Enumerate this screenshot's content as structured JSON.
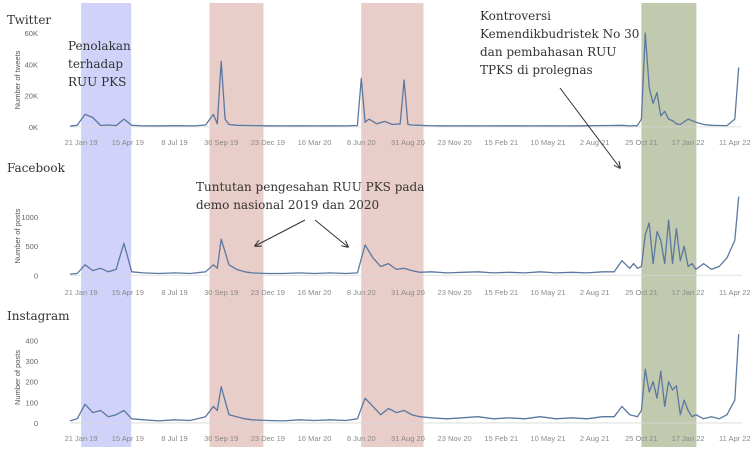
{
  "chart_data": {
    "type": "line",
    "line_color": "#5b78a0",
    "x_ticks": [
      "21 Jan 19",
      "15 Apr 19",
      "8 Jul 19",
      "30 Sep 19",
      "23 Dec 19",
      "16 Mar 20",
      "8 Jun 20",
      "31 Aug 20",
      "23 Nov 20",
      "15 Feb 21",
      "10 May 21",
      "2 Aug 21",
      "25 Oct 21",
      "17 Jan 22",
      "11 Apr 22"
    ],
    "x_range": [
      "2019-01-01",
      "2022-04-24"
    ],
    "highlight_bands": [
      {
        "start": "2019-01-21",
        "end": "2019-04-21",
        "color": "#8f94f0"
      },
      {
        "start": "2019-09-09",
        "end": "2019-12-15",
        "color": "#c9897f"
      },
      {
        "start": "2020-06-08",
        "end": "2020-09-28",
        "color": "#c9897f"
      },
      {
        "start": "2021-10-25",
        "end": "2022-02-01",
        "color": "#6b7f3f"
      }
    ],
    "panels": [
      {
        "title": "Twitter",
        "ylabel": "Number of tweets",
        "yticks": [
          {
            "v": 0,
            "label": "0K"
          },
          {
            "v": 20000,
            "label": "20K"
          },
          {
            "v": 40000,
            "label": "40K"
          },
          {
            "v": 60000,
            "label": "60K"
          }
        ],
        "ylim": [
          -2000,
          62000
        ],
        "series": {
          "x": [
            "2019-01-01",
            "2019-01-14",
            "2019-01-28",
            "2019-02-11",
            "2019-02-25",
            "2019-03-11",
            "2019-03-25",
            "2019-04-08",
            "2019-04-22",
            "2019-05-13",
            "2019-06-17",
            "2019-07-15",
            "2019-08-12",
            "2019-09-02",
            "2019-09-16",
            "2019-09-23",
            "2019-09-30",
            "2019-10-07",
            "2019-10-14",
            "2019-10-28",
            "2019-11-25",
            "2019-12-23",
            "2020-01-20",
            "2020-02-17",
            "2020-03-16",
            "2020-04-13",
            "2020-05-11",
            "2020-06-01",
            "2020-06-08",
            "2020-06-15",
            "2020-06-22",
            "2020-07-06",
            "2020-07-20",
            "2020-08-03",
            "2020-08-17",
            "2020-08-24",
            "2020-08-31",
            "2020-09-07",
            "2020-09-21",
            "2020-10-05",
            "2020-11-02",
            "2020-11-23",
            "2020-12-21",
            "2021-01-18",
            "2021-02-15",
            "2021-03-15",
            "2021-04-12",
            "2021-05-10",
            "2021-06-07",
            "2021-07-05",
            "2021-08-02",
            "2021-08-30",
            "2021-09-20",
            "2021-10-04",
            "2021-10-18",
            "2021-10-25",
            "2021-11-01",
            "2021-11-08",
            "2021-11-15",
            "2021-11-22",
            "2021-11-29",
            "2021-12-06",
            "2021-12-13",
            "2021-12-20",
            "2021-12-27",
            "2022-01-03",
            "2022-01-17",
            "2022-01-31",
            "2022-02-14",
            "2022-02-28",
            "2022-03-14",
            "2022-03-28",
            "2022-04-11",
            "2022-04-18"
          ],
          "y": [
            500,
            1000,
            8000,
            6000,
            900,
            1200,
            800,
            5000,
            1000,
            600,
            700,
            800,
            600,
            1200,
            8000,
            2000,
            42000,
            5000,
            1500,
            1000,
            800,
            700,
            600,
            700,
            600,
            700,
            600,
            900,
            31000,
            3000,
            5000,
            2000,
            3500,
            1500,
            2000,
            30000,
            1500,
            1200,
            1000,
            800,
            700,
            600,
            700,
            600,
            700,
            700,
            600,
            700,
            600,
            700,
            800,
            900,
            1000,
            600,
            800,
            5000,
            60000,
            25000,
            15000,
            22000,
            7000,
            10000,
            5000,
            4000,
            2000,
            1500,
            5000,
            3000,
            1500,
            1000,
            900,
            800,
            5000,
            38000
          ]
        }
      },
      {
        "title": "Facebook",
        "ylabel": "Number of posts",
        "yticks": [
          {
            "v": 0,
            "label": "0"
          },
          {
            "v": 500,
            "label": "500"
          },
          {
            "v": 1000,
            "label": "1000"
          }
        ],
        "ylim": [
          -30,
          1380
        ],
        "series": {
          "x": [
            "2019-01-01",
            "2019-01-14",
            "2019-01-28",
            "2019-02-11",
            "2019-02-25",
            "2019-03-11",
            "2019-03-25",
            "2019-04-08",
            "2019-04-22",
            "2019-05-13",
            "2019-06-10",
            "2019-07-08",
            "2019-08-05",
            "2019-09-02",
            "2019-09-16",
            "2019-09-23",
            "2019-09-30",
            "2019-10-14",
            "2019-10-28",
            "2019-11-11",
            "2019-11-25",
            "2019-12-23",
            "2020-01-20",
            "2020-02-17",
            "2020-03-16",
            "2020-04-13",
            "2020-05-11",
            "2020-06-01",
            "2020-06-15",
            "2020-06-29",
            "2020-07-13",
            "2020-07-27",
            "2020-08-10",
            "2020-08-24",
            "2020-09-07",
            "2020-09-21",
            "2020-10-12",
            "2020-11-09",
            "2020-12-07",
            "2021-01-04",
            "2021-02-01",
            "2021-03-01",
            "2021-03-29",
            "2021-04-26",
            "2021-05-24",
            "2021-06-21",
            "2021-07-19",
            "2021-08-16",
            "2021-09-06",
            "2021-09-20",
            "2021-10-04",
            "2021-10-11",
            "2021-10-18",
            "2021-10-25",
            "2021-11-01",
            "2021-11-08",
            "2021-11-15",
            "2021-11-22",
            "2021-11-29",
            "2021-12-06",
            "2021-12-13",
            "2021-12-20",
            "2021-12-27",
            "2022-01-03",
            "2022-01-10",
            "2022-01-17",
            "2022-01-24",
            "2022-01-31",
            "2022-02-14",
            "2022-02-28",
            "2022-03-14",
            "2022-03-28",
            "2022-04-11",
            "2022-04-18"
          ],
          "y": [
            20,
            30,
            180,
            80,
            120,
            60,
            100,
            550,
            60,
            40,
            30,
            40,
            30,
            60,
            180,
            120,
            620,
            180,
            100,
            60,
            40,
            30,
            30,
            40,
            30,
            40,
            30,
            40,
            520,
            300,
            150,
            200,
            100,
            120,
            80,
            50,
            60,
            40,
            50,
            60,
            40,
            50,
            40,
            60,
            40,
            50,
            40,
            60,
            60,
            250,
            120,
            200,
            120,
            150,
            700,
            900,
            200,
            750,
            600,
            200,
            950,
            200,
            800,
            250,
            500,
            150,
            200,
            100,
            200,
            100,
            150,
            300,
            600,
            1350
          ]
        }
      },
      {
        "title": "Instagram",
        "ylabel": "Number of posts",
        "yticks": [
          {
            "v": 0,
            "label": "0"
          },
          {
            "v": 100,
            "label": "100"
          },
          {
            "v": 200,
            "label": "200"
          },
          {
            "v": 300,
            "label": "300"
          },
          {
            "v": 400,
            "label": "400"
          }
        ],
        "ylim": [
          -10,
          450
        ],
        "series": {
          "x": [
            "2019-01-01",
            "2019-01-14",
            "2019-01-28",
            "2019-02-11",
            "2019-02-25",
            "2019-03-11",
            "2019-03-25",
            "2019-04-08",
            "2019-04-22",
            "2019-05-13",
            "2019-06-10",
            "2019-07-08",
            "2019-08-05",
            "2019-09-02",
            "2019-09-16",
            "2019-09-23",
            "2019-09-30",
            "2019-10-14",
            "2019-10-28",
            "2019-11-11",
            "2019-11-25",
            "2019-12-23",
            "2020-01-20",
            "2020-02-17",
            "2020-03-16",
            "2020-04-13",
            "2020-05-11",
            "2020-06-01",
            "2020-06-15",
            "2020-06-29",
            "2020-07-13",
            "2020-07-27",
            "2020-08-10",
            "2020-08-24",
            "2020-09-07",
            "2020-09-21",
            "2020-10-12",
            "2020-11-09",
            "2020-12-07",
            "2021-01-04",
            "2021-02-01",
            "2021-03-01",
            "2021-03-29",
            "2021-04-26",
            "2021-05-24",
            "2021-06-21",
            "2021-07-19",
            "2021-08-16",
            "2021-09-06",
            "2021-09-20",
            "2021-10-04",
            "2021-10-18",
            "2021-10-25",
            "2021-11-01",
            "2021-11-08",
            "2021-11-15",
            "2021-11-22",
            "2021-11-29",
            "2021-12-06",
            "2021-12-13",
            "2021-12-20",
            "2021-12-27",
            "2022-01-03",
            "2022-01-10",
            "2022-01-17",
            "2022-01-24",
            "2022-01-31",
            "2022-02-14",
            "2022-02-28",
            "2022-03-14",
            "2022-03-28",
            "2022-04-11",
            "2022-04-18"
          ],
          "y": [
            10,
            20,
            90,
            50,
            60,
            30,
            40,
            60,
            20,
            15,
            10,
            15,
            12,
            30,
            80,
            60,
            175,
            40,
            30,
            20,
            15,
            12,
            10,
            15,
            12,
            15,
            12,
            20,
            120,
            80,
            40,
            70,
            50,
            60,
            40,
            30,
            25,
            20,
            25,
            30,
            20,
            25,
            20,
            30,
            20,
            25,
            20,
            30,
            30,
            80,
            40,
            30,
            60,
            260,
            150,
            200,
            120,
            250,
            80,
            200,
            160,
            180,
            40,
            110,
            60,
            30,
            40,
            20,
            30,
            20,
            40,
            110,
            430
          ]
        }
      }
    ],
    "annotations": [
      {
        "lines": [
          "Penolakan",
          "terhadap",
          "RUU PKS"
        ]
      },
      {
        "lines": [
          "Kontroversi",
          "Kemendikbudristek No 30",
          "dan pembahasan RUU",
          "TPKS di prolegnas"
        ]
      },
      {
        "lines": [
          "Tuntutan pengesahan RUU PKS pada",
          "demo nasional 2019 dan 2020"
        ]
      }
    ]
  }
}
